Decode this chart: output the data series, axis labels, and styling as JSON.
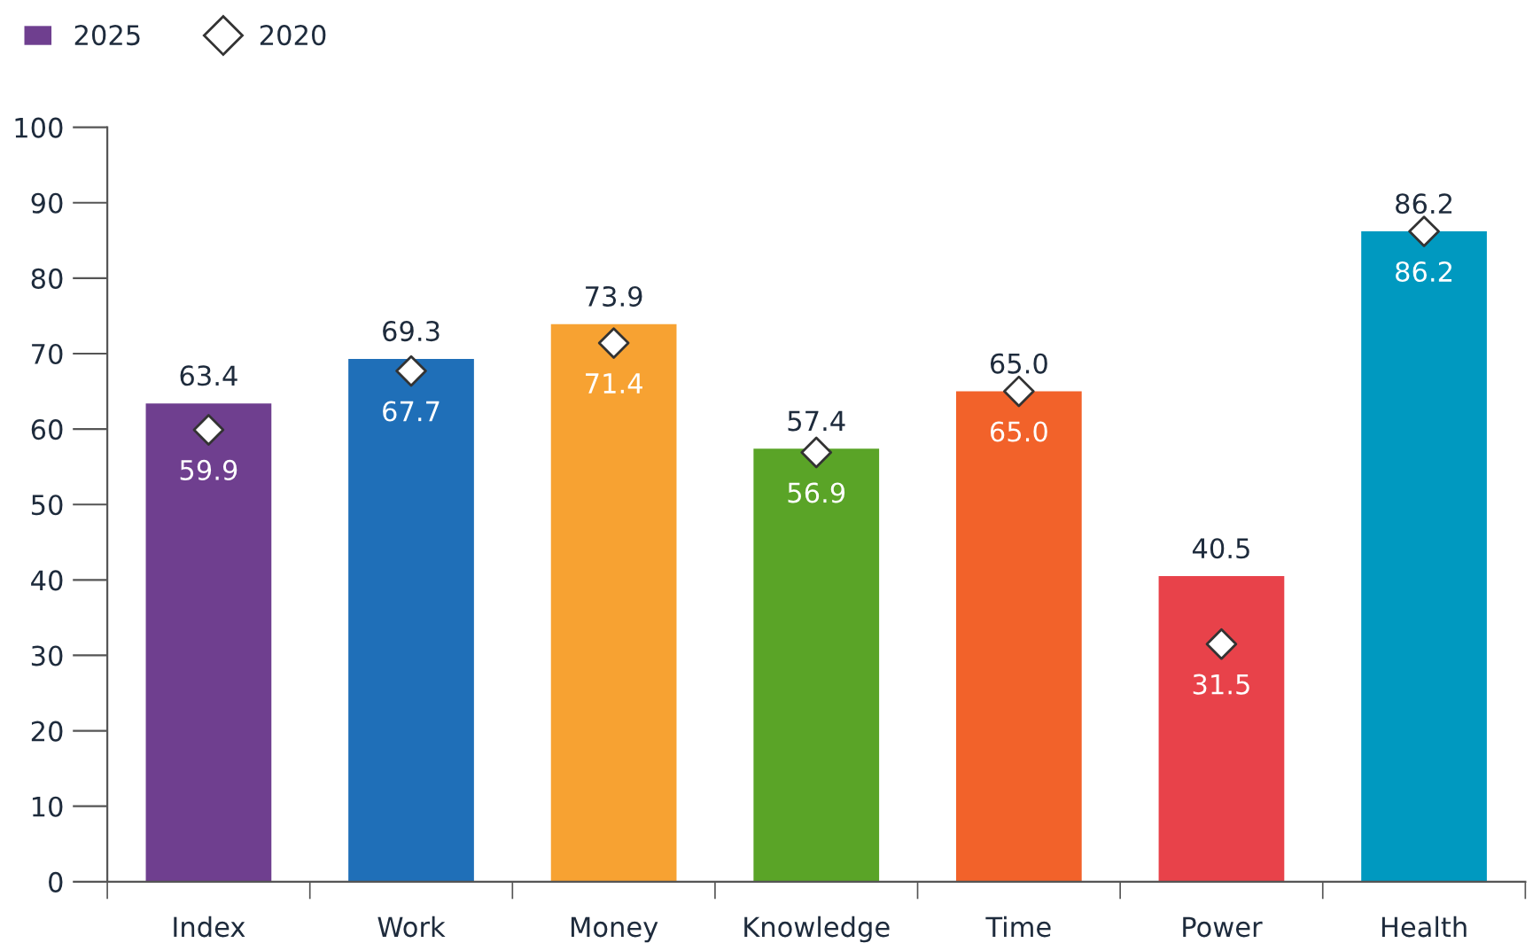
{
  "chart_data": {
    "type": "bar",
    "categories": [
      "Index",
      "Work",
      "Money",
      "Knowledge",
      "Time",
      "Power",
      "Health"
    ],
    "series": [
      {
        "name": "2025",
        "color": "#6f3f8f",
        "colors": [
          "#6f3f8f",
          "#1f6fb8",
          "#f7a232",
          "#5aa427",
          "#f2622a",
          "#e8424a",
          "#0099c0"
        ],
        "values": [
          63.4,
          69.3,
          73.9,
          57.4,
          65.0,
          40.5,
          86.2
        ],
        "value_labels": [
          "63.4",
          "69.3",
          "73.9",
          "57.4",
          "65.0",
          "40.5",
          "86.2"
        ]
      },
      {
        "name": "2020",
        "type": "scatter",
        "color": "#ffffff",
        "marker": "diamond",
        "values": [
          59.9,
          67.7,
          71.4,
          56.9,
          65.0,
          31.5,
          86.2
        ],
        "value_labels": [
          "59.9",
          "67.7",
          "71.4",
          "56.9",
          "65.0",
          "31.5",
          "86.2"
        ]
      }
    ],
    "ylim": [
      0,
      100
    ],
    "yticks": [
      0,
      10,
      20,
      30,
      40,
      50,
      60,
      70,
      80,
      90,
      100
    ],
    "grid": false,
    "legend": "top left"
  }
}
